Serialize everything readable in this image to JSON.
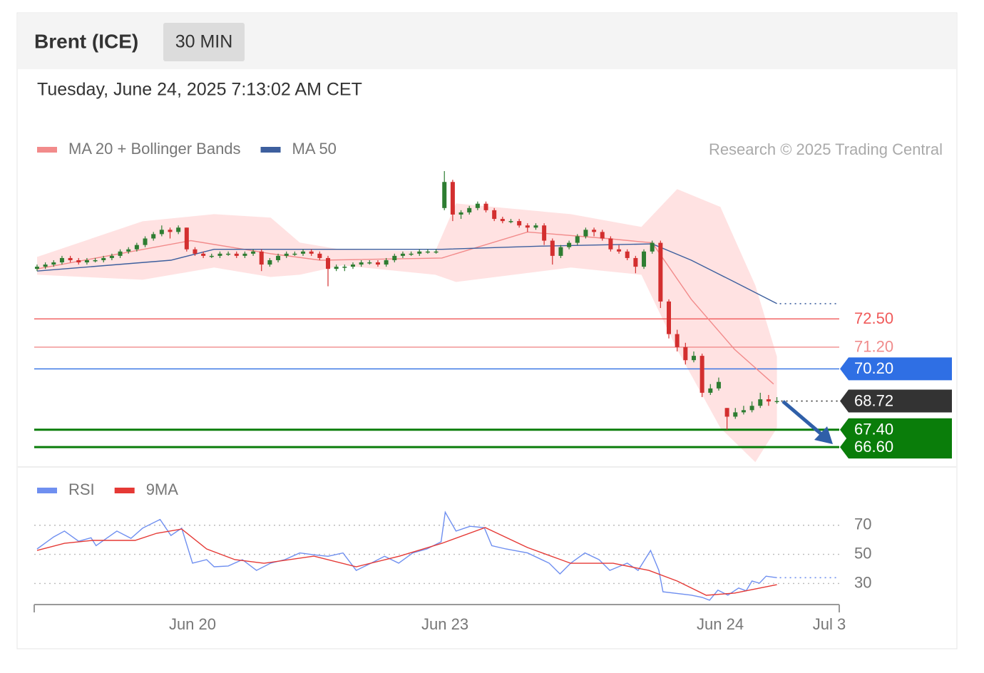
{
  "header": {
    "title": "Brent (ICE)",
    "interval": "30 MIN",
    "timestamp": "Tuesday, June 24, 2025 7:13:02 AM CET"
  },
  "watermark": "Research © 2025 Trading Central",
  "chart_data": [
    {
      "type": "candlestick",
      "up_color": "#2e7d32",
      "down_color": "#d32f2f",
      "xlim": [
        -0.34,
        96.5
      ],
      "ylim": [
        65.85,
        79.3
      ],
      "x": [
        0,
        1,
        2,
        3,
        4,
        5,
        6,
        7,
        8,
        9,
        10,
        11,
        12,
        13,
        14,
        15,
        16,
        17,
        18,
        19,
        20,
        21,
        22,
        23,
        24,
        25,
        26,
        27,
        28,
        29,
        30,
        31,
        32,
        33,
        34,
        35,
        36,
        37,
        38,
        39,
        40,
        41,
        42,
        43,
        44,
        45,
        46,
        47,
        48,
        49,
        50,
        51,
        52,
        53,
        54,
        55,
        56,
        57,
        58,
        59,
        60,
        61,
        62,
        63,
        64,
        65,
        66,
        67,
        68,
        69,
        70,
        71,
        72,
        73,
        74,
        75,
        76,
        77,
        78,
        79,
        80,
        81,
        82,
        83,
        84,
        85,
        86,
        87,
        88,
        89
      ],
      "ohlc": [
        [
          74.8,
          75.0,
          74.7,
          74.9
        ],
        [
          74.9,
          75.1,
          74.8,
          75.0
        ],
        [
          75.0,
          75.2,
          74.9,
          75.1
        ],
        [
          75.1,
          75.4,
          75.0,
          75.3
        ],
        [
          75.3,
          75.4,
          75.1,
          75.2
        ],
        [
          75.2,
          75.3,
          75.0,
          75.1
        ],
        [
          75.1,
          75.3,
          75.0,
          75.2
        ],
        [
          75.2,
          75.3,
          75.1,
          75.2
        ],
        [
          75.2,
          75.4,
          75.1,
          75.3
        ],
        [
          75.3,
          75.5,
          75.2,
          75.4
        ],
        [
          75.4,
          75.7,
          75.3,
          75.6
        ],
        [
          75.6,
          75.8,
          75.5,
          75.7
        ],
        [
          75.7,
          76.0,
          75.6,
          75.9
        ],
        [
          75.9,
          76.3,
          75.8,
          76.2
        ],
        [
          76.2,
          76.5,
          76.1,
          76.4
        ],
        [
          76.4,
          76.8,
          76.3,
          76.6
        ],
        [
          76.6,
          76.7,
          76.2,
          76.5
        ],
        [
          76.5,
          76.8,
          76.4,
          76.7
        ],
        [
          76.7,
          76.7,
          75.6,
          75.7
        ],
        [
          75.7,
          75.8,
          75.4,
          75.5
        ],
        [
          75.5,
          75.6,
          75.3,
          75.4
        ],
        [
          75.4,
          75.5,
          75.3,
          75.4
        ],
        [
          75.4,
          75.6,
          75.3,
          75.5
        ],
        [
          75.5,
          75.6,
          75.4,
          75.5
        ],
        [
          75.5,
          75.6,
          75.3,
          75.4
        ],
        [
          75.4,
          75.6,
          75.3,
          75.5
        ],
        [
          75.5,
          75.7,
          75.4,
          75.6
        ],
        [
          75.6,
          75.7,
          74.7,
          75.0
        ],
        [
          75.0,
          75.3,
          74.9,
          75.2
        ],
        [
          75.2,
          75.5,
          75.1,
          75.4
        ],
        [
          75.4,
          75.6,
          75.3,
          75.5
        ],
        [
          75.5,
          75.6,
          75.4,
          75.5
        ],
        [
          75.5,
          75.7,
          75.4,
          75.6
        ],
        [
          75.6,
          75.7,
          75.4,
          75.5
        ],
        [
          75.5,
          75.6,
          75.2,
          75.3
        ],
        [
          75.3,
          75.4,
          74.0,
          74.8
        ],
        [
          74.8,
          75.0,
          74.7,
          74.9
        ],
        [
          74.9,
          75.0,
          74.7,
          74.9
        ],
        [
          74.9,
          75.1,
          74.8,
          75.0
        ],
        [
          75.0,
          75.2,
          74.9,
          75.1
        ],
        [
          75.1,
          75.2,
          75.0,
          75.1
        ],
        [
          75.1,
          75.2,
          74.9,
          75.0
        ],
        [
          75.0,
          75.3,
          74.9,
          75.2
        ],
        [
          75.2,
          75.5,
          75.1,
          75.4
        ],
        [
          75.4,
          75.6,
          75.3,
          75.5
        ],
        [
          75.5,
          75.6,
          75.4,
          75.5
        ],
        [
          75.5,
          75.7,
          75.4,
          75.6
        ],
        [
          75.6,
          75.7,
          75.5,
          75.6
        ],
        [
          75.6,
          75.7,
          75.5,
          75.6
        ],
        [
          77.6,
          79.3,
          77.5,
          78.8
        ],
        [
          78.8,
          78.9,
          77.0,
          77.3
        ],
        [
          77.3,
          77.5,
          77.1,
          77.4
        ],
        [
          77.4,
          77.7,
          77.3,
          77.6
        ],
        [
          77.6,
          77.9,
          77.5,
          77.8
        ],
        [
          77.8,
          77.9,
          77.4,
          77.5
        ],
        [
          77.5,
          77.6,
          77.0,
          77.1
        ],
        [
          77.1,
          77.2,
          76.9,
          77.0
        ],
        [
          77.0,
          77.1,
          76.9,
          77.0
        ],
        [
          77.0,
          77.1,
          76.7,
          76.8
        ],
        [
          76.8,
          76.9,
          76.5,
          76.7
        ],
        [
          76.7,
          76.9,
          76.6,
          76.8
        ],
        [
          76.8,
          76.9,
          75.9,
          76.1
        ],
        [
          76.1,
          76.2,
          75.0,
          75.4
        ],
        [
          75.4,
          75.9,
          75.3,
          75.8
        ],
        [
          75.8,
          76.1,
          75.7,
          76.0
        ],
        [
          76.0,
          76.4,
          75.9,
          76.3
        ],
        [
          76.3,
          76.7,
          76.2,
          76.6
        ],
        [
          76.6,
          76.7,
          76.3,
          76.5
        ],
        [
          76.5,
          76.6,
          76.1,
          76.2
        ],
        [
          76.2,
          76.3,
          75.6,
          75.7
        ],
        [
          75.7,
          75.9,
          75.5,
          75.6
        ],
        [
          75.6,
          75.7,
          75.2,
          75.3
        ],
        [
          75.3,
          75.4,
          74.6,
          74.9
        ],
        [
          74.9,
          75.7,
          74.8,
          75.6
        ],
        [
          75.6,
          76.1,
          75.5,
          76.0
        ],
        [
          76.0,
          76.1,
          73.0,
          73.3
        ],
        [
          73.3,
          73.4,
          71.6,
          71.8
        ],
        [
          71.8,
          72.0,
          71.0,
          71.2
        ],
        [
          71.2,
          71.4,
          70.4,
          70.6
        ],
        [
          70.6,
          71.0,
          70.5,
          70.8
        ],
        [
          70.8,
          70.9,
          68.9,
          69.1
        ],
        [
          69.1,
          69.5,
          69.0,
          69.3
        ],
        [
          69.3,
          69.8,
          69.2,
          69.6
        ],
        [
          68.4,
          68.4,
          67.4,
          68.0
        ],
        [
          68.0,
          68.4,
          67.9,
          68.2
        ],
        [
          68.2,
          68.5,
          68.1,
          68.3
        ],
        [
          68.3,
          68.7,
          68.2,
          68.5
        ],
        [
          68.5,
          69.1,
          68.4,
          68.8
        ],
        [
          68.8,
          69.0,
          68.5,
          68.7
        ],
        [
          68.7,
          68.9,
          68.6,
          68.72
        ]
      ],
      "bands": {
        "color": "#ffd6d6",
        "x": [
          0,
          12.7,
          21.3,
          28.1,
          31.6,
          36.7,
          47.9,
          50.4,
          64.2,
          72.7,
          77,
          82.2,
          86.4,
          89
        ],
        "upper": [
          75.35,
          76.99,
          77.32,
          77.16,
          76.01,
          75.68,
          75.61,
          77.81,
          77.32,
          76.73,
          78.47,
          77.65,
          74.04,
          70.76
        ],
        "lower": [
          74.53,
          74.3,
          74.86,
          74.43,
          74.53,
          74.96,
          74.53,
          74.2,
          74.86,
          74.53,
          71.09,
          67.48,
          65.91,
          67.48
        ]
      },
      "series": [
        {
          "name": "MA 20 + Bollinger Bands",
          "color": "#f28b8b",
          "x": [
            0,
            18.5,
            28.1,
            34.1,
            48.7,
            59,
            68.5,
            74,
            78.7,
            83.9,
            88.6
          ],
          "values": [
            74.8,
            76.1,
            75.5,
            75.2,
            75.3,
            76.5,
            76.2,
            76.0,
            73.4,
            71.1,
            69.5
          ]
        },
        {
          "name": "MA 50",
          "color": "#3d5f9e",
          "extend": true,
          "x": [
            0,
            16.1,
            21.3,
            38.4,
            48.7,
            60.7,
            74,
            78.7,
            83.9,
            89
          ],
          "values": [
            74.7,
            75.2,
            75.7,
            75.7,
            75.7,
            75.85,
            75.95,
            75.2,
            74.2,
            73.2
          ]
        }
      ],
      "levels": [
        {
          "value": 72.5,
          "label": "72.50",
          "color": "#f05a5a",
          "style": "plain"
        },
        {
          "value": 71.2,
          "label": "71.20",
          "color": "#f08c8c",
          "style": "plain"
        },
        {
          "value": 70.2,
          "label": "70.20",
          "color": "#2f6fe4",
          "style": "boxed"
        },
        {
          "value": 68.72,
          "label": "68.72",
          "color": "#333333",
          "style": "boxed",
          "line": "dotted"
        },
        {
          "value": 67.4,
          "label": "67.40",
          "color": "#0a7d0a",
          "style": "boxed",
          "bold": true
        },
        {
          "value": 66.6,
          "label": "66.60",
          "color": "#0a7d0a",
          "style": "boxed",
          "bold": true
        }
      ]
    },
    {
      "type": "line",
      "xlim": [
        -0.34,
        96.5
      ],
      "ylim": [
        17,
        88
      ],
      "yticks": [
        30,
        50,
        70
      ],
      "xticks": [
        {
          "value": 18.7,
          "label": "Jun 20"
        },
        {
          "value": 49.07,
          "label": "Jun 23"
        },
        {
          "value": 82.18,
          "label": "Jun 24"
        },
        {
          "value": 95.3,
          "label": "Jul 3"
        }
      ],
      "series": [
        {
          "name": "RSI",
          "color": "#6f8ff0",
          "extend": true,
          "x": [
            0,
            2,
            3.3,
            5,
            6.5,
            7.1,
            9.6,
            11.3,
            12.7,
            14.8,
            16.1,
            17.4,
            18.7,
            20.4,
            21.3,
            23,
            24.7,
            26.4,
            28.1,
            29.8,
            31.6,
            33.3,
            35,
            36.8,
            38.4,
            40.2,
            41.8,
            43.5,
            45.2,
            46.9,
            48.6,
            49.1,
            50.4,
            52.1,
            53.8,
            54.7,
            56.4,
            59,
            61.6,
            62.9,
            64.2,
            65.9,
            67.6,
            68.9,
            71,
            72.3,
            73.8,
            74.8,
            75.3,
            78.7,
            80,
            80.9,
            81.9,
            83.1,
            84.4,
            85.3,
            86,
            86.9,
            87.7,
            89
          ],
          "values": [
            53.7,
            62,
            66,
            59,
            61.4,
            56,
            66,
            61,
            68,
            74,
            63,
            68,
            44,
            46.4,
            41.5,
            42,
            46.4,
            39,
            44,
            46.4,
            51,
            49.7,
            48.7,
            51,
            39,
            44,
            48.7,
            44,
            51,
            53.7,
            58.6,
            79,
            66,
            69.3,
            68.3,
            56,
            53.7,
            51,
            44,
            36.6,
            44,
            51,
            46.4,
            39,
            44,
            39,
            52.7,
            39,
            24.3,
            22,
            20.5,
            18.5,
            25.4,
            22,
            26.9,
            25,
            31.7,
            30.2,
            35,
            34
          ]
        },
        {
          "name": "9MA",
          "color": "#e53935",
          "x": [
            0,
            3.3,
            6.7,
            11.8,
            14.4,
            17.4,
            20.4,
            23.8,
            27.3,
            33.3,
            38.4,
            43.6,
            48.7,
            53.9,
            59,
            64.2,
            69.3,
            73.6,
            77,
            80.5,
            83.9,
            89
          ],
          "values": [
            52.7,
            57.6,
            59.6,
            59.6,
            64.5,
            67.4,
            53.7,
            46.4,
            43.9,
            48.8,
            41.5,
            48.8,
            57.6,
            68.4,
            54.7,
            43.9,
            43.9,
            39,
            31.7,
            21.9,
            23.4,
            29.2
          ]
        }
      ]
    }
  ]
}
